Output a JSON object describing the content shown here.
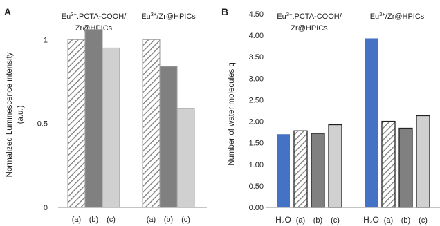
{
  "chart_data": [
    {
      "type": "bar",
      "panel_label": "A",
      "ylabel": "Normalized Luminescence intensity (a.u.)",
      "ylabel_lines": [
        "Normalized Luminescence intensity",
        "(a.u.)"
      ],
      "ylim": [
        0,
        1.1
      ],
      "yticks": [
        {
          "value": 0,
          "label": "0"
        },
        {
          "value": 0.5,
          "label": "0.5"
        },
        {
          "value": 1,
          "label": "1"
        }
      ],
      "grid": false,
      "groups": [
        {
          "title_lines": [
            {
              "pre": "Eu",
              "sup": "3+",
              "post": ".PCTA-COOH/"
            },
            {
              "pre": "Zr@HPICs",
              "sup": "",
              "post": ""
            }
          ],
          "categories": [
            "(a)",
            "(b)",
            "(c)"
          ],
          "values": [
            1.0,
            1.06,
            0.95
          ],
          "styles": [
            "hatch",
            "dark",
            "light"
          ]
        },
        {
          "title_lines": [
            {
              "pre": "Eu",
              "sup": "3+",
              "post": "/Zr@HPICs"
            }
          ],
          "categories": [
            "(a)",
            "(b)",
            "(c)"
          ],
          "values": [
            1.0,
            0.84,
            0.59
          ],
          "styles": [
            "hatch",
            "dark",
            "light"
          ]
        }
      ]
    },
    {
      "type": "bar",
      "panel_label": "B",
      "ylabel": "Number of water molecules q",
      "ylim": [
        0,
        4.5
      ],
      "yticks": [
        {
          "value": 0,
          "label": "0.00"
        },
        {
          "value": 0.5,
          "label": "0.50"
        },
        {
          "value": 1,
          "label": "1.00"
        },
        {
          "value": 1.5,
          "label": "1.50"
        },
        {
          "value": 2,
          "label": "2.00"
        },
        {
          "value": 2.5,
          "label": "2.50"
        },
        {
          "value": 3,
          "label": "3.00"
        },
        {
          "value": 3.5,
          "label": "3.50"
        },
        {
          "value": 4,
          "label": "4.00"
        },
        {
          "value": 4.5,
          "label": "4.50"
        }
      ],
      "grid": false,
      "groups": [
        {
          "title_lines": [
            {
              "pre": "Eu",
              "sup": "3+",
              "post": ".PCTA-COOH/"
            },
            {
              "pre": "Zr@HPICs",
              "sup": "",
              "post": ""
            }
          ],
          "categories": [
            "H₂O",
            "(a)",
            "(b)",
            "(c)"
          ],
          "values": [
            1.7,
            1.78,
            1.72,
            1.92
          ],
          "styles": [
            "blue",
            "hatch",
            "dark",
            "light"
          ]
        },
        {
          "title_lines": [
            {
              "pre": "Eu",
              "sup": "3+",
              "post": "/Zr@HPICs"
            }
          ],
          "categories": [
            "H₂O",
            "(a)",
            "(b)",
            "(c)"
          ],
          "values": [
            3.93,
            2.0,
            1.84,
            2.13
          ],
          "styles": [
            "blue",
            "hatch",
            "dark",
            "light"
          ]
        }
      ]
    }
  ],
  "colors": {
    "blue": "#4472c4",
    "dark": "#808080",
    "light": "#d0d0d0",
    "hatch_line": "#7a7a7a",
    "axis": "#888888",
    "text": "#222222"
  }
}
